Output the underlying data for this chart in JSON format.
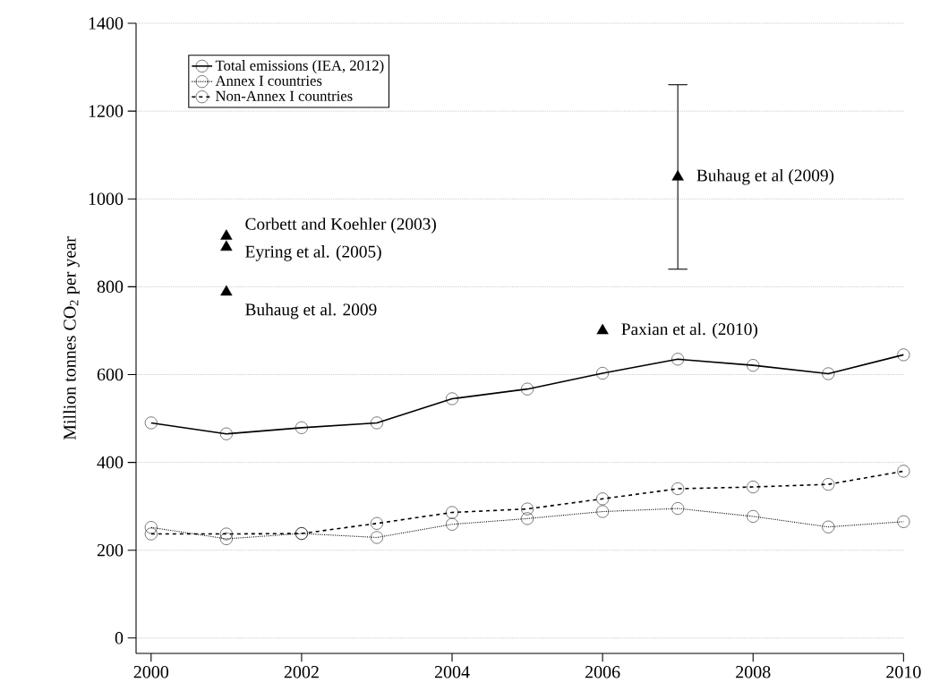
{
  "chart_data": {
    "type": "line",
    "ylabel": "Million tonnes CO$_{2}$ per year",
    "x": [
      2000,
      2001,
      2002,
      2003,
      2004,
      2005,
      2006,
      2007,
      2008,
      2009,
      2010
    ],
    "xlim": [
      1999.8,
      2010
    ],
    "ylim": [
      -35,
      1400
    ],
    "xticks": [
      2000,
      2002,
      2004,
      2006,
      2008,
      2010
    ],
    "yticks": [
      0,
      200,
      400,
      600,
      800,
      1000,
      1200,
      1400
    ],
    "grid": "y",
    "legend": "top left",
    "marker": "circle",
    "series": [
      {
        "name": "Total emissions (IEA, 2012)",
        "color": "#000000",
        "line_style": "solid",
        "values": [
          490,
          465,
          479,
          490,
          545,
          567,
          603,
          635,
          621,
          602,
          645
        ]
      },
      {
        "name": "Annex I countries",
        "color": "#000000",
        "line_style": "dotted",
        "values": [
          252,
          226,
          238,
          229,
          259,
          272,
          288,
          295,
          277,
          253,
          265
        ]
      },
      {
        "name": "Non-Annex I countries",
        "color": "#000000",
        "line_style": "dashed",
        "values": [
          237,
          237,
          238,
          261,
          286,
          294,
          317,
          340,
          344,
          350,
          380
        ]
      },
      {
        "name": "Corbett and Koehler (2003)",
        "type": "scatter",
        "marker": "triangle",
        "color": "#000000",
        "x": [
          2001
        ],
        "values": [
          915
        ]
      },
      {
        "name": "Eyring et al. (2005)",
        "type": "scatter",
        "marker": "triangle",
        "color": "#000000",
        "x": [
          2001
        ],
        "values": [
          890
        ]
      },
      {
        "name": "Buhaug et al. 2009",
        "type": "scatter",
        "marker": "triangle",
        "color": "#000000",
        "x": [
          2001
        ],
        "values": [
          788
        ]
      },
      {
        "name": "Paxian et al. (2010)",
        "type": "scatter",
        "marker": "triangle",
        "color": "#000000",
        "x": [
          2006
        ],
        "values": [
          700
        ]
      },
      {
        "name": "Buhaug et al (2009)",
        "type": "scatter",
        "marker": "triangle",
        "color": "#000000",
        "x": [
          2007
        ],
        "values": [
          1050
        ],
        "errors": [
          [
            840,
            1260
          ]
        ]
      }
    ]
  }
}
